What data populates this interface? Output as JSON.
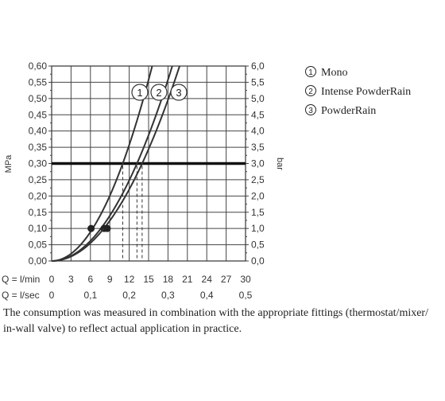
{
  "chart_data": {
    "type": "line",
    "ylabel_left": "MPa",
    "ylabel_right": "bar",
    "yticks_left": [
      "0,00",
      "0,05",
      "0,10",
      "0,15",
      "0,20",
      "0,25",
      "0,30",
      "0,35",
      "0,40",
      "0,45",
      "0,50",
      "0,55",
      "0,60"
    ],
    "yticks_right": [
      "0,0",
      "0,5",
      "1,0",
      "1,5",
      "2,0",
      "2,5",
      "3,0",
      "3,5",
      "4,0",
      "4,5",
      "5,0",
      "5,5",
      "6,0"
    ],
    "ylim": [
      0,
      0.6
    ],
    "xlim": [
      0,
      30
    ],
    "x_axis_lmin": {
      "label": "Q = l/min",
      "ticks": [
        "0",
        "3",
        "6",
        "9",
        "12",
        "15",
        "18",
        "21",
        "24",
        "27",
        "30"
      ]
    },
    "x_axis_lsec": {
      "label": "Q = l/sec",
      "ticks": [
        "0",
        "0,1",
        "0,2",
        "0,3",
        "0,4",
        "0,5"
      ]
    },
    "reference_line_mpa": 0.3,
    "series": [
      {
        "name": "Mono",
        "marker": "1",
        "x": [
          0,
          6.1,
          11.0,
          14.7
        ],
        "y": [
          0,
          0.1,
          0.3,
          0.6
        ],
        "point_at_0_1": 6.1,
        "flow_at_0_3": 11.0
      },
      {
        "name": "Intense PowderRain",
        "marker": "2",
        "x": [
          0,
          8.1,
          13.2,
          17.5
        ],
        "y": [
          0,
          0.1,
          0.3,
          0.6
        ],
        "point_at_0_1": 8.1,
        "flow_at_0_3": 13.2
      },
      {
        "name": "PowderRain",
        "marker": "3",
        "x": [
          0,
          8.6,
          14.0,
          19.5
        ],
        "y": [
          0,
          0.1,
          0.3,
          0.6
        ],
        "point_at_0_1": 8.6,
        "flow_at_0_3": 14.0
      }
    ]
  },
  "legend": {
    "items": [
      {
        "marker": "1",
        "label": "Mono"
      },
      {
        "marker": "2",
        "label": "Intense PowderRain"
      },
      {
        "marker": "3",
        "label": "PowderRain"
      }
    ]
  },
  "caption": {
    "line1": "The consumption was measured in combination with the appropriate fittings (thermostat/mixer/",
    "line2": "in-wall valve) to reflect actual application in practice."
  }
}
